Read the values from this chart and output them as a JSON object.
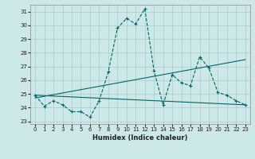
{
  "xlabel": "Humidex (Indice chaleur)",
  "xlim": [
    -0.5,
    23.5
  ],
  "ylim": [
    22.8,
    31.5
  ],
  "yticks": [
    23,
    24,
    25,
    26,
    27,
    28,
    29,
    30,
    31
  ],
  "xticks": [
    0,
    1,
    2,
    3,
    4,
    5,
    6,
    7,
    8,
    9,
    10,
    11,
    12,
    13,
    14,
    15,
    16,
    17,
    18,
    19,
    20,
    21,
    22,
    23
  ],
  "background_color": "#cce8e8",
  "grid_color": "#aacccc",
  "line_color": "#006666",
  "line1_x": [
    0,
    1,
    2,
    3,
    4,
    5,
    6,
    7,
    8,
    9,
    10,
    11,
    12,
    13,
    14,
    15,
    16,
    17,
    18,
    19,
    20,
    21,
    22,
    23
  ],
  "line1_y": [
    24.9,
    24.1,
    24.5,
    24.2,
    23.7,
    23.7,
    23.3,
    24.5,
    26.6,
    29.8,
    30.5,
    30.1,
    31.2,
    26.7,
    24.2,
    26.4,
    25.8,
    25.6,
    27.7,
    26.9,
    25.1,
    24.9,
    24.5,
    24.2
  ],
  "line2_x": [
    0,
    23
  ],
  "line2_y": [
    24.9,
    24.2
  ],
  "line3_x": [
    0,
    23
  ],
  "line3_y": [
    24.7,
    27.5
  ]
}
